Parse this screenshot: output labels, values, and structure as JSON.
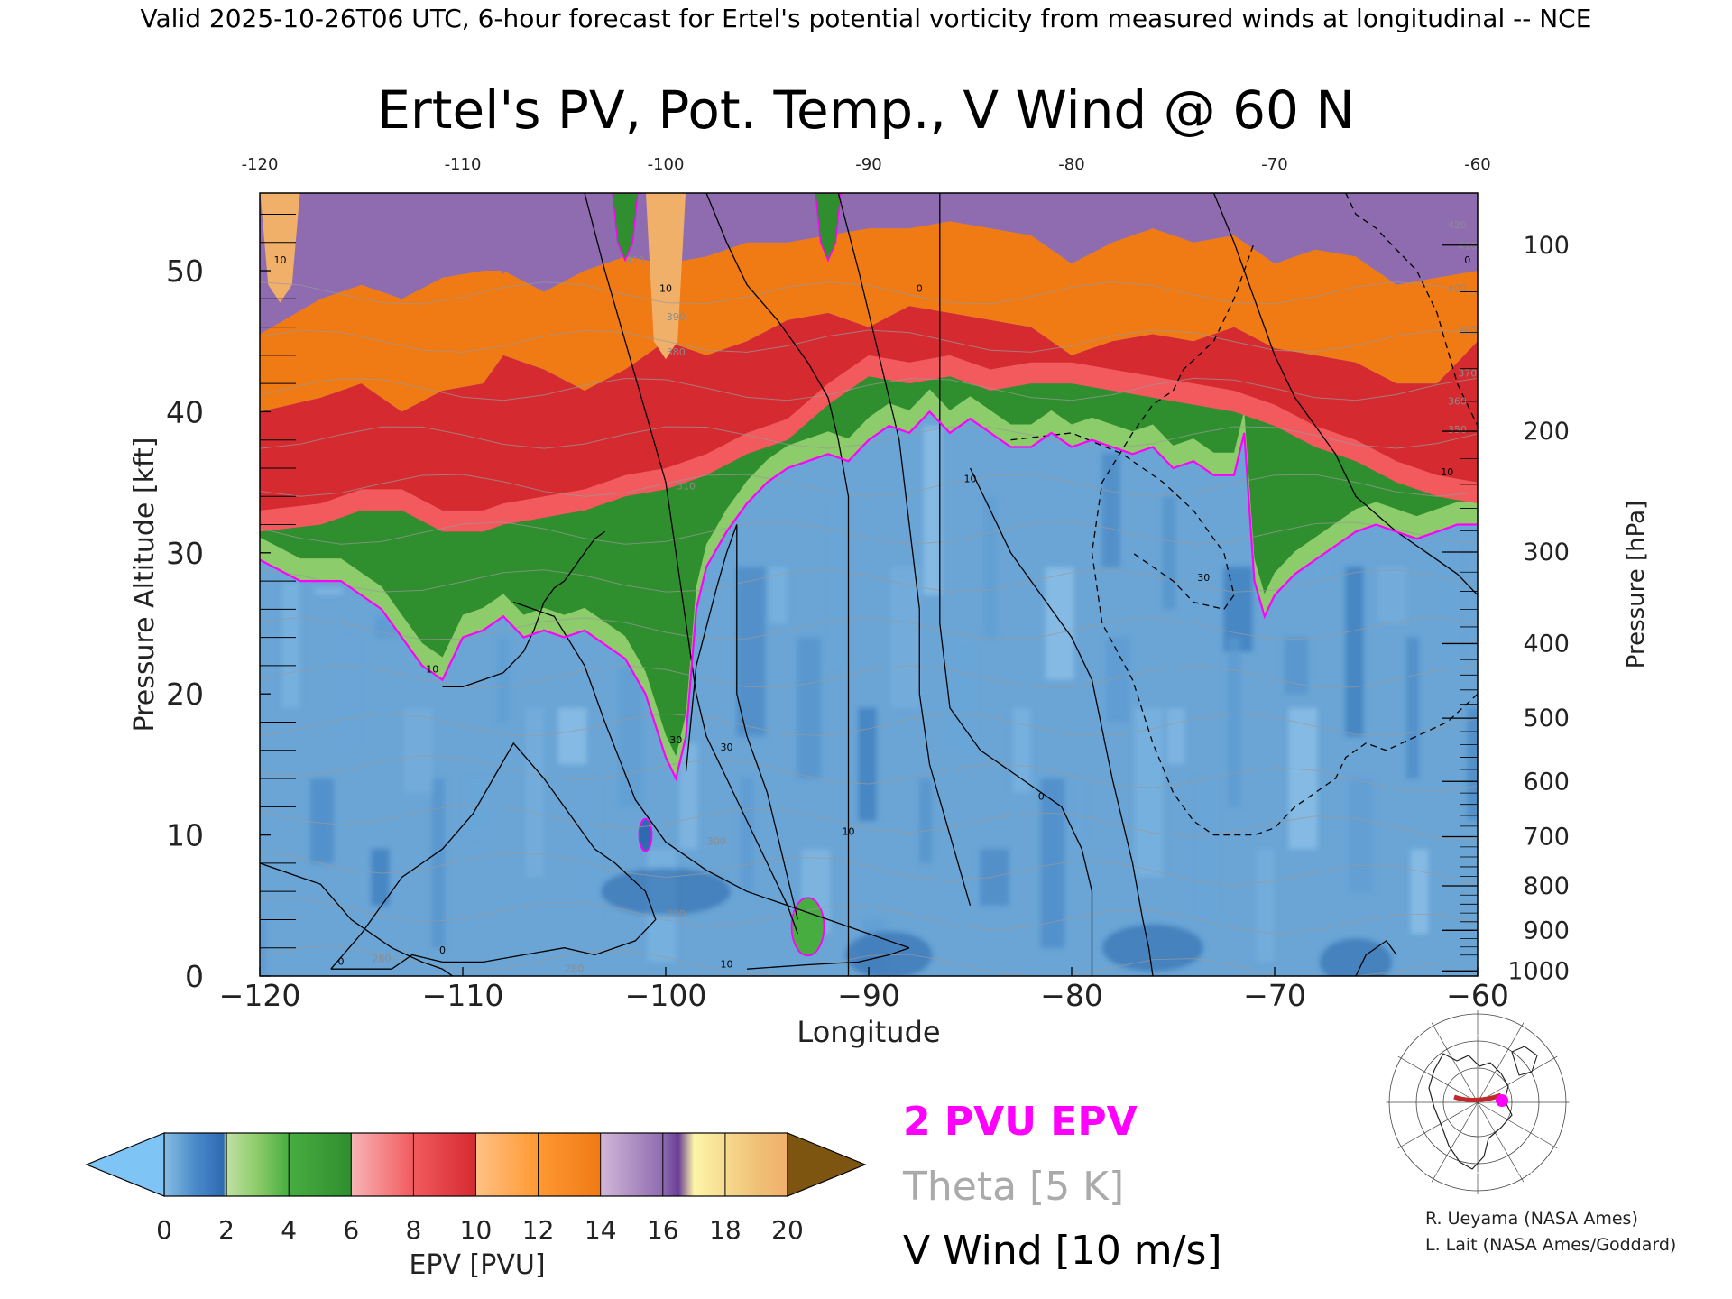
{
  "header": {
    "valid_text": "Valid 2025-10-26T06 UTC, 6-hour forecast for Ertel's potential vorticity from measured winds at longitudinal -- NCE"
  },
  "chart_data": {
    "type": "heatmap",
    "title": "Ertel's PV, Pot. Temp., V Wind @ 60 N",
    "xlabel": "Longitude",
    "ylabel_left": "Pressure Altitude [kft]",
    "ylabel_right": "Pressure [hPa]",
    "xlim": [
      -120,
      -60
    ],
    "ylim": [
      0,
      55.5
    ],
    "x_ticks": [
      -120,
      -110,
      -100,
      -90,
      -80,
      -70,
      -60
    ],
    "x_tick_labels": [
      "−120",
      "−110",
      "−100",
      "−90",
      "−80",
      "−70",
      "−60"
    ],
    "top_tick_labels": [
      "-120",
      "-110",
      "-100",
      "-90",
      "-80",
      "-70",
      "-60"
    ],
    "y_ticks": [
      0,
      10,
      20,
      30,
      40,
      50
    ],
    "y_tick_labels": [
      "0",
      "10",
      "20",
      "30",
      "40",
      "50"
    ],
    "pressure_ticks": [
      {
        "hpa": 1000,
        "label": "1000"
      },
      {
        "hpa": 900,
        "label": "900"
      },
      {
        "hpa": 800,
        "label": "800"
      },
      {
        "hpa": 700,
        "label": "700"
      },
      {
        "hpa": 600,
        "label": "600"
      },
      {
        "hpa": 500,
        "label": "500"
      },
      {
        "hpa": 400,
        "label": "400"
      },
      {
        "hpa": 300,
        "label": "300"
      },
      {
        "hpa": 200,
        "label": "200"
      },
      {
        "hpa": 100,
        "label": "100"
      }
    ],
    "pv_2pvu_height_kft": {
      "lon": [
        -120,
        -118,
        -116,
        -114,
        -112,
        -111,
        -110,
        -109,
        -108,
        -107,
        -106,
        -105,
        -104,
        -103,
        -102,
        -101,
        -100,
        -99.5,
        -99,
        -98.5,
        -98,
        -97,
        -96,
        -95,
        -94,
        -93,
        -92,
        -91,
        -90,
        -89,
        -88,
        -87,
        -86,
        -85,
        -84,
        -83,
        -82,
        -81,
        -80,
        -79,
        -78,
        -77,
        -76,
        -75,
        -74,
        -73,
        -72,
        -71.5,
        -71,
        -70.5,
        -70,
        -69,
        -68,
        -67,
        -66,
        -65,
        -64,
        -63,
        -62,
        -61,
        -60
      ],
      "kft": [
        29.5,
        28.0,
        28.0,
        26.0,
        22.0,
        21.0,
        24.0,
        24.5,
        25.5,
        24.0,
        24.5,
        24.0,
        24.5,
        23.5,
        22.5,
        20.0,
        15.5,
        14.0,
        17.0,
        26.0,
        29.0,
        31.5,
        33.5,
        35.0,
        36.0,
        36.5,
        37.0,
        36.5,
        38.0,
        39.0,
        38.5,
        40.0,
        38.5,
        39.5,
        38.5,
        37.5,
        37.5,
        38.5,
        37.5,
        38.0,
        37.5,
        37.0,
        37.5,
        36.0,
        36.5,
        35.5,
        35.5,
        38.5,
        28.0,
        25.5,
        27.0,
        28.5,
        29.5,
        30.5,
        31.5,
        32.0,
        31.5,
        31.0,
        31.5,
        32.0,
        32.0
      ]
    },
    "pv_upper_bands_kft": {
      "lon": [
        -120,
        -117,
        -115,
        -113,
        -111,
        -109,
        -108,
        -106,
        -104,
        -102,
        -100,
        -98,
        -96,
        -94,
        -92,
        -90,
        -88,
        -86,
        -84,
        -82,
        -80,
        -78,
        -76,
        -74,
        -72,
        -70,
        -68,
        -66,
        -64,
        -62,
        -60
      ],
      "green_top": [
        31.5,
        32.0,
        33.0,
        33.0,
        31.5,
        31.5,
        32.0,
        32.5,
        33.0,
        34.0,
        34.5,
        35.5,
        37.0,
        38.0,
        40.5,
        42.5,
        42.0,
        42.5,
        41.5,
        42.0,
        42.0,
        41.5,
        41.0,
        40.5,
        40.0,
        39.0,
        37.5,
        36.5,
        35.0,
        34.0,
        33.5
      ],
      "red_top": [
        40.0,
        41.0,
        42.0,
        40.0,
        41.5,
        42.0,
        44.0,
        43.0,
        41.5,
        43.0,
        45.0,
        44.0,
        45.0,
        46.5,
        47.0,
        46.0,
        47.5,
        47.0,
        46.5,
        46.0,
        44.0,
        45.0,
        45.5,
        45.0,
        46.0,
        44.5,
        44.0,
        43.5,
        42.0,
        42.0,
        45.0
      ],
      "orange_top": [
        45.5,
        48.0,
        49.0,
        48.0,
        49.5,
        50.0,
        50.0,
        48.5,
        50.0,
        51.0,
        50.5,
        51.0,
        52.0,
        52.0,
        52.5,
        53.0,
        53.0,
        53.5,
        53.0,
        52.5,
        50.5,
        52.0,
        53.0,
        52.0,
        52.5,
        50.5,
        51.5,
        51.0,
        49.0,
        49.5,
        50.0
      ]
    },
    "pv_stratospheric_spikes": [
      {
        "lon": -108,
        "kft": 51.0,
        "pvu": 16
      },
      {
        "lon": -102,
        "kft": 52.0,
        "pvu": 6
      },
      {
        "lon": -92,
        "kft": 52.0,
        "pvu": 6
      },
      {
        "lon": -119,
        "kft": 49.0,
        "pvu": 20
      },
      {
        "lon": -100,
        "kft": 45.0,
        "pvu": 20
      }
    ],
    "pv_lowlevel_patches": [
      {
        "lon": -93,
        "kft": 3.5,
        "pvu": 4
      },
      {
        "lon": -101,
        "kft": 10.0,
        "pvu": 1.6
      }
    ],
    "theta_levels_K": [
      280,
      290,
      300,
      310,
      320,
      330,
      340,
      350,
      360,
      370,
      380,
      390,
      400,
      410,
      420
    ],
    "v_wind_contours": [
      {
        "label": "10",
        "lon": [
          -116.5,
          -115,
          -113,
          -111,
          -109.5,
          -108.5,
          -107.5,
          -106,
          -104.5,
          -103.5,
          -102.5,
          -101,
          -100.5,
          -101.5,
          -103.5,
          -105,
          -107,
          -109,
          -111,
          -112.5,
          -113.5,
          -115,
          -116.5
        ],
        "kft": [
          0.5,
          3.0,
          7.0,
          9.0,
          11.5,
          14.0,
          16.5,
          14.0,
          11.0,
          9.0,
          8.0,
          6.0,
          4.0,
          2.5,
          1.5,
          2.0,
          1.5,
          1.0,
          1.0,
          1.5,
          0.5,
          0.5,
          0.5
        ]
      },
      {
        "label": "0",
        "lon": [
          -120,
          -117,
          -115.5,
          -113.5,
          -112,
          -111,
          -110.5
        ],
        "kft": [
          8.0,
          6.5,
          4.0,
          2.0,
          1.0,
          0.5,
          0
        ]
      },
      {
        "label": "0",
        "lon": [
          -107.5,
          -105.5,
          -104,
          -103,
          -101.5,
          -100,
          -98,
          -96,
          -94,
          -92,
          -90,
          -88
        ],
        "kft": [
          26.5,
          25.5,
          22.0,
          18.0,
          12.5,
          9.5,
          7.5,
          6.0,
          5.0,
          4.0,
          3.0,
          2.0
        ]
      },
      {
        "label": "10",
        "lon": [
          -88,
          -89,
          -90.5,
          -93,
          -96
        ],
        "kft": [
          2.0,
          1.5,
          1.0,
          0.8,
          0.5
        ]
      },
      {
        "label": "10",
        "lon": [
          -111,
          -110,
          -109,
          -108,
          -107,
          -106.5,
          -106,
          -105.5,
          -105,
          -104.5,
          -104,
          -103.5,
          -103
        ],
        "kft": [
          20.5,
          20.5,
          21.0,
          21.5,
          23.0,
          24.5,
          26.5,
          27.5,
          28.0,
          29.0,
          30.0,
          31.0,
          31.5
        ]
      },
      {
        "label": "20",
        "lon": [
          -104,
          -103,
          -102,
          -101,
          -100,
          -99.5,
          -99,
          -98.5,
          -98,
          -97,
          -96,
          -95,
          -94,
          -93.5
        ],
        "kft": [
          55.5,
          50.0,
          45.0,
          40.0,
          35.0,
          30.0,
          25.0,
          20.0,
          17.0,
          14.0,
          11.0,
          8.0,
          5.0,
          3.0
        ]
      },
      {
        "label": "30",
        "lon": [
          -99,
          -98.5,
          -97.5,
          -97,
          -96.5,
          -96.5,
          -96.5,
          -96,
          -95.5,
          -95,
          -94.5,
          -94,
          -93.5
        ],
        "kft": [
          14.5,
          22.0,
          27.5,
          30.0,
          32.0,
          26.0,
          20.0,
          17.0,
          15.0,
          13.0,
          10.0,
          7.0,
          4.0
        ]
      },
      {
        "label": "10",
        "lon": [
          -98,
          -97,
          -96,
          -94.5,
          -93,
          -92,
          -91.5,
          -91,
          -91,
          -91,
          -91,
          -91,
          -91,
          -91
        ],
        "kft": [
          55.5,
          52.0,
          49.0,
          46.5,
          43.5,
          41.0,
          38.0,
          34.0,
          28.0,
          22.0,
          16.0,
          10.0,
          5.0,
          0
        ]
      },
      {
        "label": "10",
        "lon": [
          -91.5,
          -90.5,
          -89.5,
          -88.5,
          -88,
          -87.5,
          -87.5,
          -87,
          -86,
          -85
        ],
        "kft": [
          55.5,
          50.0,
          44.0,
          38.0,
          32.0,
          26.0,
          20.0,
          15.0,
          10.0,
          5.0
        ]
      },
      {
        "label": "0",
        "lon": [
          -86.5,
          -86.5,
          -86.5,
          -86.5,
          -86.5,
          -86.5,
          -86,
          -84.5,
          -82.5,
          -80.5,
          -79.5,
          -79,
          -79,
          -79,
          -79
        ],
        "kft": [
          55.5,
          50.0,
          44.0,
          38.0,
          32.0,
          25.0,
          19.0,
          16.0,
          14.0,
          12.0,
          9.0,
          6.0,
          3.0,
          1.0,
          0
        ]
      },
      {
        "label": "10",
        "lon": [
          -85,
          -84,
          -83,
          -81.5,
          -80,
          -79,
          -78,
          -77,
          -76.5,
          -76.2,
          -76
        ],
        "kft": [
          36.0,
          33.0,
          30.0,
          27.0,
          24.0,
          21.0,
          14.0,
          8.0,
          4.0,
          2.0,
          0
        ]
      },
      {
        "label": "30",
        "lon": [
          -83,
          -80,
          -77.5,
          -75.5,
          -74,
          -72.5,
          -72,
          -72.5,
          -74,
          -75,
          -77
        ],
        "kft": [
          38.0,
          38.5,
          37.0,
          35.0,
          33.0,
          30.0,
          27.0,
          26.0,
          26.5,
          28.0,
          30.0
        ]
      },
      {
        "label": "0",
        "lon": [
          -73,
          -72,
          -71,
          -70,
          -69,
          -67,
          -66,
          -64,
          -62.5,
          -61,
          -60
        ],
        "kft": [
          55.5,
          52.0,
          48.0,
          44.0,
          41.0,
          37.0,
          34.0,
          31.5,
          30.0,
          28.5,
          27.0
        ]
      },
      {
        "label": "10",
        "lon": [
          -66.5,
          -66,
          -65,
          -64,
          -63,
          -62,
          -61,
          -60
        ],
        "kft": [
          55.5,
          54.0,
          53.0,
          51.5,
          50.0,
          47.0,
          42.0,
          39.0
        ]
      },
      {
        "label": "0",
        "lon": [
          -60,
          -61.5,
          -63,
          -64.5,
          -65.5,
          -66.5,
          -67,
          -68,
          -69,
          -70,
          -71,
          -72,
          -73,
          -74,
          -75,
          -76,
          -77,
          -78.5,
          -79,
          -78.5,
          -77,
          -76,
          -75,
          -74.5,
          -73,
          -72,
          -71
        ],
        "kft": [
          20.0,
          18.0,
          17.0,
          16.0,
          16.5,
          15.5,
          14.0,
          13.0,
          12.0,
          10.5,
          10.0,
          10.0,
          10.0,
          11.0,
          13.0,
          16.5,
          21.0,
          25.0,
          30.0,
          35.0,
          38.5,
          40.5,
          41.5,
          43.0,
          45.0,
          48.0,
          52.0
        ]
      },
      {
        "label": "0",
        "lon": [
          -66,
          -65.5,
          -64.5,
          -64
        ],
        "kft": [
          0,
          1.5,
          2.5,
          1.5
        ]
      }
    ],
    "contour_labels": [
      {
        "text": "0",
        "lon": -116,
        "kft": 0.8,
        "color": "#000"
      },
      {
        "text": "0",
        "lon": -111,
        "kft": 1.6,
        "color": "#000"
      },
      {
        "text": "10",
        "lon": -111.5,
        "kft": 21.5,
        "color": "#000"
      },
      {
        "text": "30",
        "lon": -99.5,
        "kft": 16.5,
        "color": "#000"
      },
      {
        "text": "30",
        "lon": -97,
        "kft": 16.0,
        "color": "#000"
      },
      {
        "text": "10",
        "lon": -97,
        "kft": 0.6,
        "color": "#000"
      },
      {
        "text": "10",
        "lon": -91,
        "kft": 10.0,
        "color": "#000"
      },
      {
        "text": "10",
        "lon": -85,
        "kft": 35.0,
        "color": "#000"
      },
      {
        "text": "0",
        "lon": -87.5,
        "kft": 48.5,
        "color": "#000"
      },
      {
        "text": "0",
        "lon": -81.5,
        "kft": 12.5,
        "color": "#000"
      },
      {
        "text": "30",
        "lon": -73.5,
        "kft": 28.0,
        "color": "#000"
      },
      {
        "text": "0",
        "lon": -60.5,
        "kft": 50.5,
        "color": "#000"
      },
      {
        "text": "10",
        "lon": -61.5,
        "kft": 35.5,
        "color": "#000"
      },
      {
        "text": "10",
        "lon": -119,
        "kft": 50.5,
        "color": "#000"
      },
      {
        "text": "10",
        "lon": -100,
        "kft": 48.5,
        "color": "#000"
      },
      {
        "text": "280",
        "lon": -114,
        "kft": 1.0,
        "color": "#8c8c8c"
      },
      {
        "text": "280",
        "lon": -104.5,
        "kft": 0.3,
        "color": "#8c8c8c"
      },
      {
        "text": "290",
        "lon": -99.5,
        "kft": 4.2,
        "color": "#8c8c8c"
      },
      {
        "text": "300",
        "lon": -97.5,
        "kft": 9.3,
        "color": "#8c8c8c"
      },
      {
        "text": "310",
        "lon": -99,
        "kft": 34.5,
        "color": "#8c8c8c"
      },
      {
        "text": "380",
        "lon": -99.5,
        "kft": 44.0,
        "color": "#8c8c8c"
      },
      {
        "text": "390",
        "lon": -99.5,
        "kft": 46.5,
        "color": "#8c8c8c"
      },
      {
        "text": "410",
        "lon": -101.5,
        "kft": 50.5,
        "color": "#8c8c8c"
      },
      {
        "text": "350",
        "lon": -61,
        "kft": 38.5,
        "color": "#8c8c8c"
      },
      {
        "text": "360",
        "lon": -61,
        "kft": 40.5,
        "color": "#8c8c8c"
      },
      {
        "text": "370",
        "lon": -60.5,
        "kft": 42.5,
        "color": "#8c8c8c"
      },
      {
        "text": "380",
        "lon": -60.5,
        "kft": 45.5,
        "color": "#8c8c8c"
      },
      {
        "text": "400",
        "lon": -61,
        "kft": 48.5,
        "color": "#8c8c8c"
      },
      {
        "text": "410",
        "lon": -60.5,
        "kft": 51.5,
        "color": "#8c8c8c"
      },
      {
        "text": "420",
        "lon": -61,
        "kft": 53.0,
        "color": "#8c8c8c"
      }
    ]
  },
  "colorbar": {
    "label": "EPV [PVU]",
    "tick_labels": [
      "0",
      "2",
      "4",
      "6",
      "8",
      "10",
      "12",
      "14",
      "16",
      "18",
      "20"
    ],
    "stops": [
      {
        "pvu": -1,
        "color": "#7ec4f5"
      },
      {
        "pvu": 0,
        "color": "#86bde4"
      },
      {
        "pvu": 1,
        "color": "#4a8ac9"
      },
      {
        "pvu": 1.9,
        "color": "#2e6ab0"
      },
      {
        "pvu": 2,
        "color": "#bfe0a4"
      },
      {
        "pvu": 3,
        "color": "#8ccc6a"
      },
      {
        "pvu": 4,
        "color": "#47ad40"
      },
      {
        "pvu": 6,
        "color": "#2f8e2e"
      },
      {
        "pvu": 6.01,
        "color": "#f7b4b7"
      },
      {
        "pvu": 8,
        "color": "#f25a5d"
      },
      {
        "pvu": 10,
        "color": "#d42a30"
      },
      {
        "pvu": 10.01,
        "color": "#ffc185"
      },
      {
        "pvu": 12,
        "color": "#ff9933"
      },
      {
        "pvu": 14,
        "color": "#f07a14"
      },
      {
        "pvu": 14.01,
        "color": "#d2b7da"
      },
      {
        "pvu": 16,
        "color": "#8f6bb0"
      },
      {
        "pvu": 16.5,
        "color": "#6a3e96"
      },
      {
        "pvu": 17,
        "color": "#fdf5a8"
      },
      {
        "pvu": 19,
        "color": "#efc178"
      },
      {
        "pvu": 20,
        "color": "#f0b06a"
      },
      {
        "pvu": 21,
        "color": "#7d5410"
      }
    ]
  },
  "legend": {
    "pv_line": {
      "label": "2 PVU EPV",
      "color": "#ff00ff"
    },
    "theta_line": {
      "label": "Theta [5 K]",
      "color": "#aaaaaa"
    },
    "wind_line": {
      "label": "V Wind [10 m/s]",
      "color": "#000000"
    }
  },
  "inset_map": {
    "marker_color": "#ff00ff",
    "section_color": "#c0282a"
  },
  "credits": {
    "line1": "R. Ueyama (NASA Ames)",
    "line2": "L. Lait (NASA Ames/Goddard)"
  }
}
